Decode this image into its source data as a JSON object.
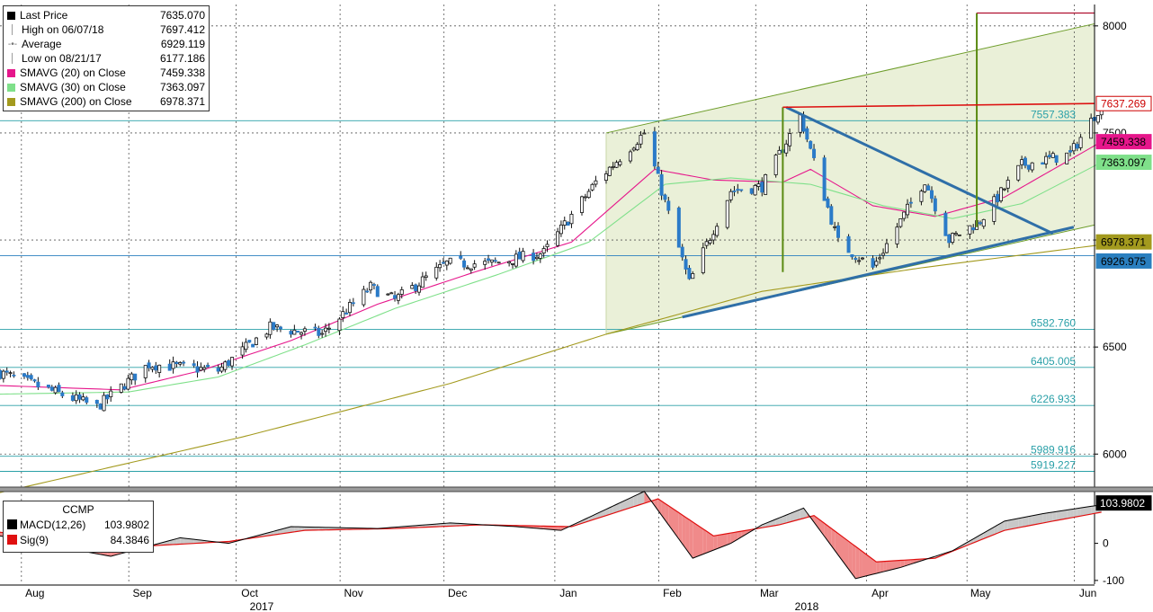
{
  "legend": {
    "items": [
      {
        "label": "Last Price",
        "value": "7635.070",
        "color": "#000000",
        "marker": "box"
      },
      {
        "label": "High on 06/07/18",
        "value": "7697.412",
        "marker": "line"
      },
      {
        "label": "Average",
        "value": "6929.119",
        "marker": "dot"
      },
      {
        "label": "Low on 08/21/17",
        "value": "6177.186",
        "marker": "line"
      },
      {
        "label": "SMAVG (20)  on Close",
        "value": "7459.338",
        "color": "#e6168b",
        "marker": "box"
      },
      {
        "label": "SMAVG (30)  on Close",
        "value": "7363.097",
        "color": "#7fe08a",
        "marker": "box"
      },
      {
        "label": "SMAVG (200)  on Close",
        "value": "6978.371",
        "color": "#a39a1e",
        "marker": "box"
      }
    ]
  },
  "macd_legend": {
    "title": "CCMP",
    "items": [
      {
        "label": "MACD(12,26)",
        "value": "103.9802",
        "color": "#000000"
      },
      {
        "label": "Sig(9)",
        "value": "84.3846",
        "color": "#e01010"
      }
    ]
  },
  "chart_data": [
    {
      "type": "candlestick",
      "title": "",
      "x_range": [
        "2017-07-24",
        "2018-06-05"
      ],
      "ylim": [
        5850,
        8100
      ],
      "y_ticks": [
        6000,
        6500,
        7000,
        7500,
        8000
      ],
      "y_tick_labels": [
        "6000",
        "6500",
        "7000",
        "7500",
        "8000"
      ],
      "x_month_labels": [
        "Aug",
        "Sep",
        "Oct",
        "Nov",
        "Dec",
        "Jan",
        "Feb",
        "Mar",
        "Apr",
        "May",
        "Jun"
      ],
      "x_year_labels": [
        "2017",
        "2018"
      ],
      "grid": true,
      "series": [
        {
          "name": "Last Price",
          "kind": "candles",
          "up_color": "#ffffff",
          "down_color": "#2b7bc8",
          "key_points": [
            {
              "x": "2017-07-24",
              "y": 6380
            },
            {
              "x": "2017-08-21",
              "y": 6220
            },
            {
              "x": "2017-09-05",
              "y": 6420
            },
            {
              "x": "2017-09-25",
              "y": 6390
            },
            {
              "x": "2017-10-10",
              "y": 6590
            },
            {
              "x": "2017-10-25",
              "y": 6560
            },
            {
              "x": "2017-11-08",
              "y": 6780
            },
            {
              "x": "2017-11-15",
              "y": 6720
            },
            {
              "x": "2017-11-30",
              "y": 6890
            },
            {
              "x": "2017-12-13",
              "y": 6890
            },
            {
              "x": "2017-12-28",
              "y": 6940
            },
            {
              "x": "2018-01-12",
              "y": 7270
            },
            {
              "x": "2018-01-26",
              "y": 7500
            },
            {
              "x": "2018-02-08",
              "y": 6800
            },
            {
              "x": "2018-02-20",
              "y": 7230
            },
            {
              "x": "2018-03-01",
              "y": 7250
            },
            {
              "x": "2018-03-12",
              "y": 7580
            },
            {
              "x": "2018-03-23",
              "y": 6990
            },
            {
              "x": "2018-04-02",
              "y": 6870
            },
            {
              "x": "2018-04-17",
              "y": 7280
            },
            {
              "x": "2018-04-24",
              "y": 7000
            },
            {
              "x": "2018-05-03",
              "y": 7090
            },
            {
              "x": "2018-05-15",
              "y": 7350
            },
            {
              "x": "2018-05-29",
              "y": 7400
            },
            {
              "x": "2018-06-07",
              "y": 7635
            }
          ]
        },
        {
          "name": "SMAVG (20)  on Close",
          "color": "#e6168b",
          "key_points": [
            {
              "x": "2017-07-24",
              "y": 6320
            },
            {
              "x": "2017-08-28",
              "y": 6300
            },
            {
              "x": "2017-09-20",
              "y": 6390
            },
            {
              "x": "2017-10-16",
              "y": 6530
            },
            {
              "x": "2017-11-10",
              "y": 6700
            },
            {
              "x": "2017-12-08",
              "y": 6850
            },
            {
              "x": "2018-01-05",
              "y": 6990
            },
            {
              "x": "2018-01-29",
              "y": 7330
            },
            {
              "x": "2018-02-15",
              "y": 7280
            },
            {
              "x": "2018-03-07",
              "y": 7270
            },
            {
              "x": "2018-03-15",
              "y": 7330
            },
            {
              "x": "2018-04-02",
              "y": 7160
            },
            {
              "x": "2018-04-20",
              "y": 7110
            },
            {
              "x": "2018-05-10",
              "y": 7200
            },
            {
              "x": "2018-06-07",
              "y": 7459
            }
          ]
        },
        {
          "name": "SMAVG (30)  on Close",
          "color": "#7fe08a",
          "key_points": [
            {
              "x": "2017-07-24",
              "y": 6280
            },
            {
              "x": "2017-08-30",
              "y": 6290
            },
            {
              "x": "2017-09-25",
              "y": 6360
            },
            {
              "x": "2017-10-20",
              "y": 6510
            },
            {
              "x": "2017-11-15",
              "y": 6680
            },
            {
              "x": "2017-12-15",
              "y": 6840
            },
            {
              "x": "2018-01-10",
              "y": 6990
            },
            {
              "x": "2018-02-01",
              "y": 7260
            },
            {
              "x": "2018-02-20",
              "y": 7290
            },
            {
              "x": "2018-03-15",
              "y": 7260
            },
            {
              "x": "2018-04-05",
              "y": 7160
            },
            {
              "x": "2018-04-25",
              "y": 7100
            },
            {
              "x": "2018-05-15",
              "y": 7170
            },
            {
              "x": "2018-06-07",
              "y": 7363
            }
          ]
        },
        {
          "name": "SMAVG (200)  on Close",
          "color": "#a39a1e",
          "key_points": [
            {
              "x": "2017-07-24",
              "y": 5820
            },
            {
              "x": "2017-10-02",
              "y": 6080
            },
            {
              "x": "2017-12-01",
              "y": 6330
            },
            {
              "x": "2018-01-15",
              "y": 6560
            },
            {
              "x": "2018-03-01",
              "y": 6760
            },
            {
              "x": "2018-04-16",
              "y": 6870
            },
            {
              "x": "2018-06-07",
              "y": 6978
            }
          ]
        }
      ],
      "channel": {
        "upper": [
          {
            "x": "2018-01-15",
            "y": 7500
          },
          {
            "x": "2018-06-05",
            "y": 8010
          }
        ],
        "lower": [
          {
            "x": "2018-01-15",
            "y": 6560
          },
          {
            "x": "2018-06-05",
            "y": 7070
          }
        ],
        "fill": "#eaf0d8",
        "stroke": "#6e9d2b"
      },
      "trendlines": [
        {
          "from": {
            "x": "2018-02-06",
            "y": 6640
          },
          "to": {
            "x": "2018-05-30",
            "y": 7060
          },
          "color": "#2f6fa8"
        },
        {
          "from": {
            "x": "2018-03-08",
            "y": 7620
          },
          "to": {
            "x": "2018-05-24",
            "y": 7030
          },
          "color": "#2f6fa8"
        }
      ],
      "vertical_markers": [
        {
          "x": "2018-03-07",
          "from": 6850,
          "to": 7620,
          "color": "#5a8a12"
        },
        {
          "x": "2018-05-02",
          "from": 7060,
          "to": 8060,
          "color": "#5a8a12"
        }
      ],
      "levels": [
        {
          "label": "6582.760",
          "value": 6582.76,
          "color": "#2aa0a8"
        },
        {
          "label": "6405.005",
          "value": 6405.005,
          "color": "#2aa0a8"
        },
        {
          "label": "6226.933",
          "value": 6226.933,
          "color": "#2aa0a8"
        },
        {
          "label": "5989.916",
          "value": 5989.916,
          "color": "#2aa0a8"
        },
        {
          "label": "5919.227",
          "value": 5919.227,
          "color": "#2aa0a8"
        },
        {
          "label": "7557.383",
          "value": 7557.383,
          "color": "#2aa0a8"
        },
        {
          "label": "6926.975",
          "value": 6926.975,
          "color": "#2a7fbf"
        }
      ],
      "right_tags": [
        {
          "label": "7637.269",
          "value": 7637.269,
          "bg": "#ffffff",
          "fg": "#cc0000",
          "border": "#cc0000"
        },
        {
          "label": "7459.338",
          "value": 7459.338,
          "bg": "#e6168b",
          "fg": "#000000",
          "border": "#e6168b"
        },
        {
          "label": "7363.097",
          "value": 7363.097,
          "bg": "#7fe08a",
          "fg": "#000000",
          "border": "#7fe08a"
        },
        {
          "label": "6978.371",
          "value": 6978.371,
          "bg": "#a39a1e",
          "fg": "#000000",
          "border": "#a39a1e"
        },
        {
          "label": "6926.975",
          "value": 6926.975,
          "bg": "#2a7fbf",
          "fg": "#000000",
          "border": "#2a7fbf"
        }
      ]
    },
    {
      "type": "line",
      "title": "CCMP",
      "ylim": [
        -110,
        125
      ],
      "y_ticks": [
        100,
        0,
        -100
      ],
      "y_tick_labels": [
        "100",
        "0",
        "-100"
      ],
      "series": [
        {
          "name": "MACD(12,26)",
          "color": "#000000",
          "key_points": [
            {
              "x": "2017-07-24",
              "y": 20
            },
            {
              "x": "2017-08-25",
              "y": -35
            },
            {
              "x": "2017-09-14",
              "y": 15
            },
            {
              "x": "2017-09-28",
              "y": 0
            },
            {
              "x": "2017-10-16",
              "y": 45
            },
            {
              "x": "2017-11-10",
              "y": 40
            },
            {
              "x": "2017-12-01",
              "y": 55
            },
            {
              "x": "2017-12-20",
              "y": 45
            },
            {
              "x": "2018-01-02",
              "y": 35
            },
            {
              "x": "2018-01-26",
              "y": 140
            },
            {
              "x": "2018-02-09",
              "y": -40
            },
            {
              "x": "2018-02-20",
              "y": 0
            },
            {
              "x": "2018-03-01",
              "y": 50
            },
            {
              "x": "2018-03-13",
              "y": 95
            },
            {
              "x": "2018-03-28",
              "y": -95
            },
            {
              "x": "2018-04-10",
              "y": -65
            },
            {
              "x": "2018-04-25",
              "y": -20
            },
            {
              "x": "2018-05-10",
              "y": 60
            },
            {
              "x": "2018-05-21",
              "y": 80
            },
            {
              "x": "2018-06-07",
              "y": 104
            }
          ]
        },
        {
          "name": "Sig(9)",
          "color": "#e01010",
          "key_points": [
            {
              "x": "2017-07-24",
              "y": 30
            },
            {
              "x": "2017-08-30",
              "y": -10
            },
            {
              "x": "2017-09-28",
              "y": 5
            },
            {
              "x": "2017-10-20",
              "y": 35
            },
            {
              "x": "2017-11-15",
              "y": 40
            },
            {
              "x": "2017-12-10",
              "y": 50
            },
            {
              "x": "2018-01-05",
              "y": 45
            },
            {
              "x": "2018-01-30",
              "y": 120
            },
            {
              "x": "2018-02-15",
              "y": 20
            },
            {
              "x": "2018-03-06",
              "y": 50
            },
            {
              "x": "2018-03-16",
              "y": 75
            },
            {
              "x": "2018-04-03",
              "y": -50
            },
            {
              "x": "2018-04-20",
              "y": -40
            },
            {
              "x": "2018-05-10",
              "y": 35
            },
            {
              "x": "2018-05-24",
              "y": 60
            },
            {
              "x": "2018-06-07",
              "y": 84
            }
          ]
        }
      ],
      "right_tags": [
        {
          "label": "103.9802",
          "value": 103.98,
          "bg": "#000000",
          "fg": "#ffffff",
          "border": "#000000"
        }
      ]
    }
  ]
}
